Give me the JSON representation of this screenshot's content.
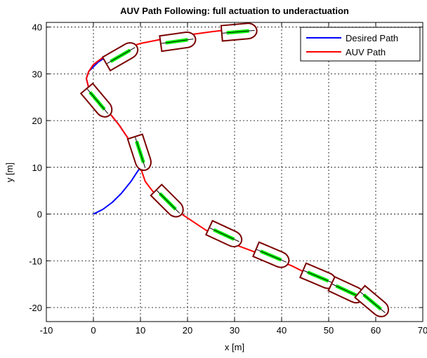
{
  "chart_data": {
    "type": "line",
    "title": "AUV Path Following: full actuation to underactuation",
    "xlabel": "x [m]",
    "ylabel": "y [m]",
    "xlim": [
      -10,
      70
    ],
    "ylim": [
      -23,
      41
    ],
    "xticks": [
      -10,
      0,
      10,
      20,
      30,
      40,
      50,
      60,
      70
    ],
    "yticks": [
      -20,
      -10,
      0,
      10,
      20,
      30,
      40
    ],
    "xtick_labels": [
      "-10",
      "0",
      "10",
      "20",
      "30",
      "40",
      "50",
      "60",
      "70"
    ],
    "ytick_labels": [
      "-20",
      "-10",
      "0",
      "10",
      "20",
      "30",
      "40"
    ],
    "grid": true,
    "legend_position": "top-right",
    "colors": {
      "desired": "#0000ff",
      "auv": "#ff0000",
      "hull_fill": "#ffffff",
      "hull_edge": "#7a0000",
      "stripe": "#00ff00",
      "heading": "#000000"
    },
    "series": [
      {
        "name": "Desired Path",
        "color": "#0000ff",
        "x": [
          0,
          2,
          4,
          6,
          8,
          9.3,
          10,
          9,
          7.5,
          5.5,
          3.5,
          1.5,
          0,
          -1,
          -1.5,
          -1,
          0,
          1,
          2.5
        ],
        "y": [
          0,
          1,
          2.5,
          4.5,
          7,
          9,
          10,
          13,
          16,
          19,
          21.5,
          23.5,
          25,
          27,
          29,
          30.5,
          31.5,
          32.5,
          33.5
        ]
      },
      {
        "name": "AUV Path",
        "color": "#ff0000",
        "x": [
          60.5,
          58,
          55.5,
          53,
          50,
          47.5,
          45,
          42,
          38,
          34,
          30,
          27,
          24,
          21,
          18,
          16,
          14,
          12.5,
          11,
          10,
          9,
          7.5,
          5.5,
          3.5,
          1.5,
          0,
          -1,
          -1.5,
          -1,
          0,
          2,
          5,
          10,
          15,
          20,
          25,
          30,
          33
        ],
        "y": [
          -20,
          -18.5,
          -17,
          -15.5,
          -14.5,
          -13.5,
          -12.5,
          -11,
          -9.5,
          -8,
          -6.5,
          -5,
          -3.5,
          -1.5,
          0.5,
          2,
          3.5,
          5,
          7,
          10,
          13,
          16,
          19,
          21.5,
          23.5,
          25,
          27,
          29,
          30.5,
          32,
          33.5,
          35,
          36.5,
          37.5,
          38.3,
          39,
          39.6,
          40
        ]
      }
    ],
    "vehicles": [
      {
        "x": 6,
        "y": 34,
        "heading_deg": 30
      },
      {
        "x": 1,
        "y": 24,
        "heading_deg": -50
      },
      {
        "x": 10,
        "y": 13,
        "heading_deg": -72
      },
      {
        "x": 16,
        "y": 2.5,
        "heading_deg": -45
      },
      {
        "x": 28,
        "y": -4.5,
        "heading_deg": -25
      },
      {
        "x": 38,
        "y": -9,
        "heading_deg": -23
      },
      {
        "x": 48,
        "y": -13.5,
        "heading_deg": -23
      },
      {
        "x": 54,
        "y": -16.5,
        "heading_deg": -25
      },
      {
        "x": 59.5,
        "y": -19,
        "heading_deg": -40
      },
      {
        "x": 18,
        "y": 37,
        "heading_deg": 8
      },
      {
        "x": 31,
        "y": 39,
        "heading_deg": 5
      }
    ]
  }
}
